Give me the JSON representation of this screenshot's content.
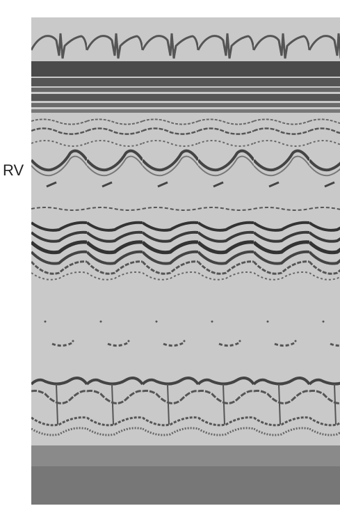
{
  "label": "RV"
}
